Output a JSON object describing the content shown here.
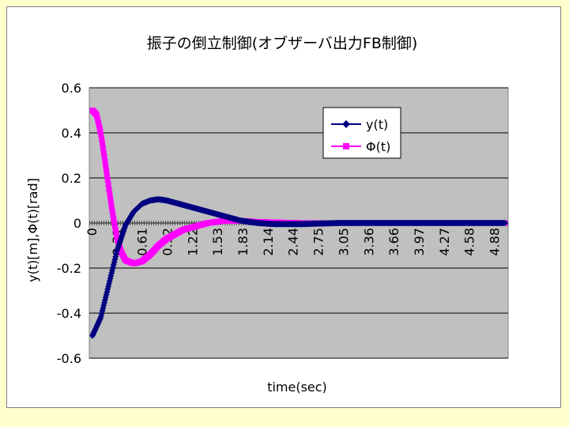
{
  "chart_data": {
    "type": "line",
    "title": "振子の倒立制御(オブザーバ出力FB制御)",
    "xlabel": "time(sec)",
    "ylabel": "y(t)[m],Φ(t)[rad]",
    "ylim": [
      -0.6,
      0.6
    ],
    "xlim": [
      0,
      5.0
    ],
    "y_ticks": [
      "0.6",
      "0.4",
      "0.2",
      "0",
      "-0.2",
      "-0.4",
      "-0.6"
    ],
    "y_tick_values": [
      0.6,
      0.4,
      0.2,
      0,
      -0.2,
      -0.4,
      -0.6
    ],
    "x_ticks": [
      "0",
      "0.31",
      "0.61",
      "0.92",
      "1.22",
      "1.53",
      "1.83",
      "2.14",
      "2.44",
      "2.75",
      "3.05",
      "3.36",
      "3.66",
      "3.97",
      "4.27",
      "4.58",
      "4.88"
    ],
    "x_tick_values": [
      0,
      0.305,
      0.61,
      0.915,
      1.22,
      1.525,
      1.83,
      2.135,
      2.44,
      2.745,
      3.05,
      3.355,
      3.66,
      3.965,
      4.27,
      4.575,
      4.88
    ],
    "grid": true,
    "legend_position": "top-right",
    "series": [
      {
        "name": "y(t)",
        "color": "#000080",
        "marker": "diamond",
        "x": [
          0,
          0.1,
          0.2,
          0.3,
          0.4,
          0.5,
          0.6,
          0.7,
          0.8,
          0.9,
          1.0,
          1.2,
          1.4,
          1.6,
          1.8,
          2.0,
          2.2,
          2.5,
          3.0,
          3.5,
          4.0,
          4.5,
          5.0
        ],
        "y": [
          -0.5,
          -0.42,
          -0.27,
          -0.12,
          -0.01,
          0.05,
          0.085,
          0.1,
          0.105,
          0.1,
          0.09,
          0.07,
          0.05,
          0.03,
          0.01,
          0.0,
          -0.005,
          -0.005,
          0.0,
          0.0,
          0.0,
          0.0,
          0.0
        ]
      },
      {
        "name": "Φ(t)",
        "color": "#ff00ff",
        "marker": "square",
        "x": [
          0,
          0.05,
          0.1,
          0.15,
          0.2,
          0.25,
          0.3,
          0.35,
          0.4,
          0.5,
          0.6,
          0.7,
          0.8,
          0.9,
          1.0,
          1.1,
          1.2,
          1.4,
          1.6,
          1.8,
          2.0,
          2.5,
          3.0,
          3.5,
          4.0,
          4.5,
          5.0
        ],
        "y": [
          0.5,
          0.48,
          0.4,
          0.28,
          0.15,
          0.03,
          -0.07,
          -0.13,
          -0.165,
          -0.18,
          -0.17,
          -0.14,
          -0.1,
          -0.07,
          -0.05,
          -0.03,
          -0.02,
          0.0,
          0.01,
          0.01,
          0.005,
          0.0,
          0.0,
          0.0,
          0.0,
          0.0,
          0.0
        ]
      }
    ],
    "colors": {
      "plot_background": "#c0c0c0",
      "gridline": "#000000",
      "page_background": "#ffffcc",
      "zero_line": "#808080"
    }
  }
}
